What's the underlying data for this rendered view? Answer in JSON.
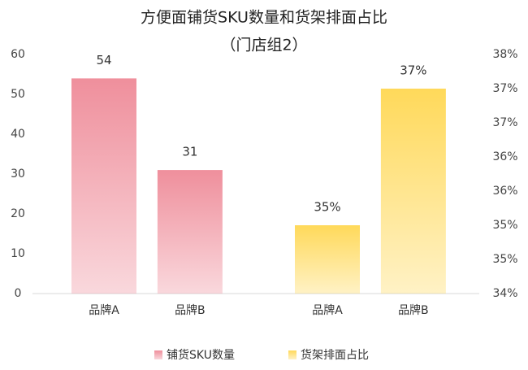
{
  "chart_data": {
    "type": "bar",
    "title": "方便面铺货SKU数量和货架排面占比",
    "subtitle": "（门店组2）",
    "categories": [
      "品牌A",
      "品牌B",
      "品牌A",
      "品牌B"
    ],
    "series": [
      {
        "name": "铺货SKU数量",
        "color": "#ef8f9c",
        "values": [
          54,
          31,
          null,
          null
        ]
      },
      {
        "name": "货架排面占比",
        "color": "#ffd95a",
        "axis": "y2",
        "values": [
          null,
          null,
          35.4,
          37.4
        ],
        "value_labels": [
          null,
          null,
          "35%",
          "37%"
        ]
      }
    ],
    "ylim": [
      0,
      60
    ],
    "yticks": [
      0,
      10,
      20,
      30,
      40,
      50,
      60
    ],
    "y2lim": [
      34.4,
      37.9
    ],
    "y2ticks": [
      {
        "value": 34.4,
        "label": "34%"
      },
      {
        "value": 34.9,
        "label": "35%"
      },
      {
        "value": 35.4,
        "label": "35%"
      },
      {
        "value": 35.9,
        "label": "36%"
      },
      {
        "value": 36.4,
        "label": "36%"
      },
      {
        "value": 36.9,
        "label": "37%"
      },
      {
        "value": 37.4,
        "label": "37%"
      },
      {
        "value": 37.9,
        "label": "38%"
      }
    ],
    "grid": false,
    "legend": "bottom"
  }
}
